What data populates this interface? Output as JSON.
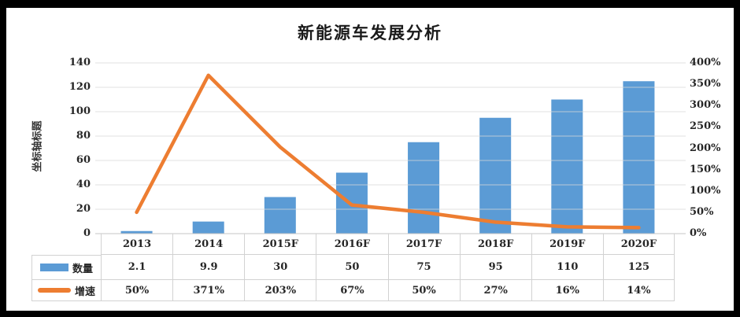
{
  "title": "新能源车发展分析",
  "chart_data": {
    "type": "combo bar+line with data table",
    "title": "新能源车发展分析",
    "categories": [
      "2013",
      "2014",
      "2015F",
      "2016F",
      "2017F",
      "2018F",
      "2019F",
      "2020F"
    ],
    "series": [
      {
        "name": "数量",
        "type": "bar",
        "axis": "left",
        "color": "#5B9BD5",
        "values": [
          2.1,
          9.9,
          30,
          50,
          75,
          95,
          110,
          125
        ],
        "display": [
          "2.1",
          "9.9",
          "30",
          "50",
          "75",
          "95",
          "110",
          "125"
        ]
      },
      {
        "name": "增速",
        "type": "line",
        "axis": "right",
        "color": "#ED7D31",
        "values": [
          50,
          371,
          203,
          67,
          50,
          27,
          16,
          14
        ],
        "display": [
          "50%",
          "371%",
          "203%",
          "67%",
          "50%",
          "27%",
          "16%",
          "14%"
        ]
      }
    ],
    "left_axis": {
      "title": "坐标轴标题",
      "min": 0,
      "max": 140,
      "step": 20,
      "labels": [
        "140",
        "120",
        "100",
        "80",
        "60",
        "40",
        "20",
        "0"
      ]
    },
    "right_axis": {
      "min": 0,
      "max": 400,
      "step": 50,
      "labels": [
        "400%",
        "350%",
        "300%",
        "250%",
        "200%",
        "150%",
        "100%",
        "50%",
        "0%"
      ]
    },
    "grid": "horizontal",
    "legend_position": "data-table",
    "colors": {
      "gridline": "#D9D9D9",
      "axis_line": "#C4C4C4",
      "table_border": "#D2D2D2",
      "text": "#262626",
      "frame": "#000000"
    }
  }
}
